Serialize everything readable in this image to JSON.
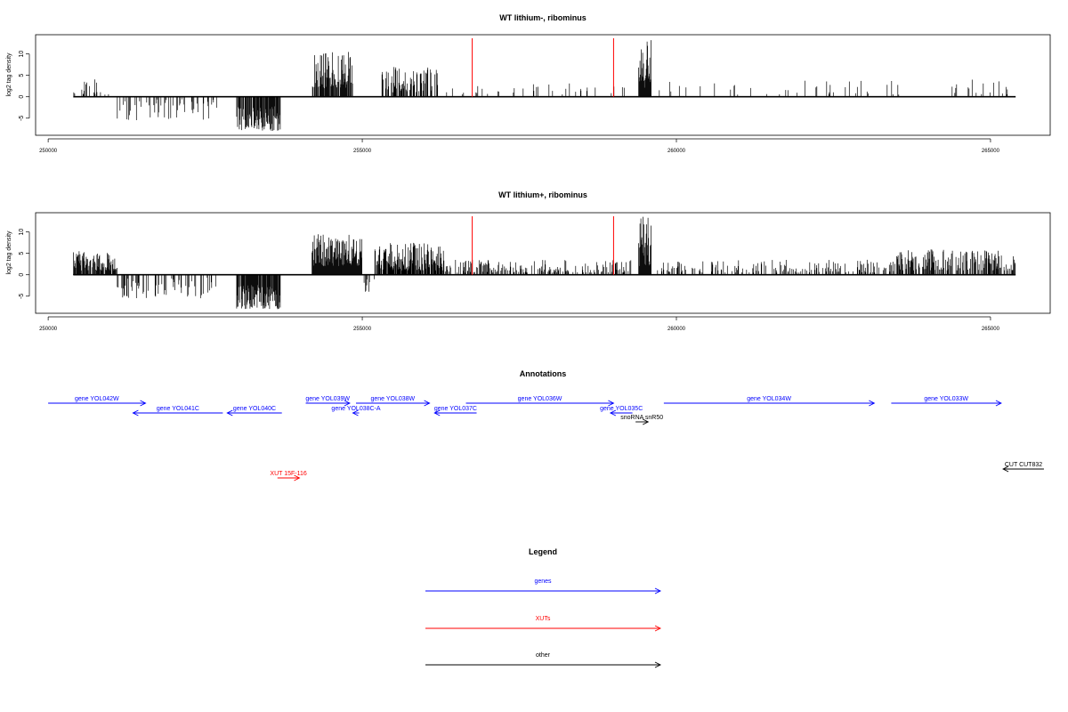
{
  "colors": {
    "genes": "#0000ff",
    "xuts": "#ff0000",
    "other": "#000000",
    "signal": "#000000",
    "marker": "#ff0000"
  },
  "chart_data": [
    {
      "type": "bar",
      "title": "WT lithium-, ribominus",
      "ylabel": "log2 tag density",
      "xlim": [
        249800,
        265950
      ],
      "ylim": [
        -9,
        14.5
      ],
      "xticks": [
        250000,
        255000,
        260000,
        265000
      ],
      "yticks": [
        -5,
        0,
        5,
        10
      ],
      "red_markers": [
        256750,
        259000
      ],
      "segments": [
        {
          "start": 250400,
          "end": 251100,
          "min": 0.5,
          "max": 4.5,
          "density": 0.45
        },
        {
          "start": 251100,
          "end": 252700,
          "min": -5.5,
          "max": -0.5,
          "density": 0.7
        },
        {
          "start": 253000,
          "end": 253700,
          "min": -8,
          "max": -2,
          "density": 2.5
        },
        {
          "start": 254200,
          "end": 254850,
          "min": 2,
          "max": 10.5,
          "density": 2.5
        },
        {
          "start": 255300,
          "end": 256200,
          "min": 1,
          "max": 7,
          "density": 1.5
        },
        {
          "start": 256300,
          "end": 259200,
          "min": 0.5,
          "max": 3.5,
          "density": 0.25
        },
        {
          "start": 259400,
          "end": 259600,
          "min": 2,
          "max": 13.5,
          "density": 3
        },
        {
          "start": 259600,
          "end": 265400,
          "min": 0.5,
          "max": 4,
          "density": 0.2
        }
      ]
    },
    {
      "type": "bar",
      "title": "WT lithium+, ribominus",
      "ylabel": "log2 tag density",
      "xlim": [
        249800,
        265950
      ],
      "ylim": [
        -9,
        14.5
      ],
      "xticks": [
        250000,
        255000,
        260000,
        265000
      ],
      "yticks": [
        -5,
        0,
        5,
        10
      ],
      "red_markers": [
        256750,
        259000
      ],
      "segments": [
        {
          "start": 250400,
          "end": 251100,
          "min": 1,
          "max": 5.5,
          "density": 2.5
        },
        {
          "start": 251100,
          "end": 252700,
          "min": -5.5,
          "max": -0.5,
          "density": 0.8
        },
        {
          "start": 253000,
          "end": 253700,
          "min": -8,
          "max": -2,
          "density": 2.5
        },
        {
          "start": 254200,
          "end": 255000,
          "min": 2,
          "max": 9.5,
          "density": 3
        },
        {
          "start": 255000,
          "end": 255200,
          "min": -4,
          "max": -0.5,
          "density": 1
        },
        {
          "start": 255200,
          "end": 256300,
          "min": 1,
          "max": 7.5,
          "density": 2.5
        },
        {
          "start": 256300,
          "end": 259300,
          "min": 0.5,
          "max": 3.5,
          "density": 1.2
        },
        {
          "start": 259400,
          "end": 259600,
          "min": 2,
          "max": 14,
          "density": 3
        },
        {
          "start": 259600,
          "end": 263500,
          "min": 0.5,
          "max": 3.5,
          "density": 0.8
        },
        {
          "start": 263500,
          "end": 265400,
          "min": 1,
          "max": 6,
          "density": 1.5
        }
      ]
    }
  ],
  "annotations": {
    "title": "Annotations",
    "items": [
      {
        "label": "gene YOL042W",
        "kind": "genes",
        "dir": "right",
        "start": 250000,
        "end": 251550,
        "row": 0
      },
      {
        "label": "gene YOL041C",
        "kind": "genes",
        "dir": "left",
        "start": 251350,
        "end": 252780,
        "row": 1
      },
      {
        "label": "gene YOL040C",
        "kind": "genes",
        "dir": "left",
        "start": 252850,
        "end": 253720,
        "row": 1
      },
      {
        "label": "gene YOL039W",
        "kind": "genes",
        "dir": "right",
        "start": 254100,
        "end": 254800,
        "row": 0
      },
      {
        "label": "gene YOL038C-A",
        "kind": "genes",
        "dir": "left",
        "start": 254850,
        "end": 254950,
        "row": 1
      },
      {
        "label": "gene YOL038W",
        "kind": "genes",
        "dir": "right",
        "start": 254900,
        "end": 256070,
        "row": 0
      },
      {
        "label": "gene YOL037C",
        "kind": "genes",
        "dir": "left",
        "start": 256150,
        "end": 256820,
        "row": 1
      },
      {
        "label": "gene YOL036W",
        "kind": "genes",
        "dir": "right",
        "start": 256650,
        "end": 259000,
        "row": 0
      },
      {
        "label": "gene YOL035C",
        "kind": "genes",
        "dir": "left",
        "start": 258950,
        "end": 259300,
        "row": 1
      },
      {
        "label": "snoRNA snR50",
        "kind": "other",
        "dir": "right",
        "start": 259350,
        "end": 259550,
        "row": 2
      },
      {
        "label": "gene YOL034W",
        "kind": "genes",
        "dir": "right",
        "start": 259800,
        "end": 263150,
        "row": 0
      },
      {
        "label": "gene YOL033W",
        "kind": "genes",
        "dir": "right",
        "start": 263420,
        "end": 265170,
        "row": 0
      },
      {
        "label": "CUT CUT832",
        "kind": "other",
        "dir": "left",
        "start": 265200,
        "end": 265850,
        "row": 3
      },
      {
        "label": "XUT 15F-116",
        "kind": "xuts",
        "dir": "right",
        "start": 253650,
        "end": 254000,
        "row": 4
      }
    ]
  },
  "legend": {
    "title": "Legend",
    "items": [
      {
        "label": "genes",
        "kind": "genes"
      },
      {
        "label": "XUTs",
        "kind": "xuts"
      },
      {
        "label": "other",
        "kind": "other"
      }
    ]
  }
}
